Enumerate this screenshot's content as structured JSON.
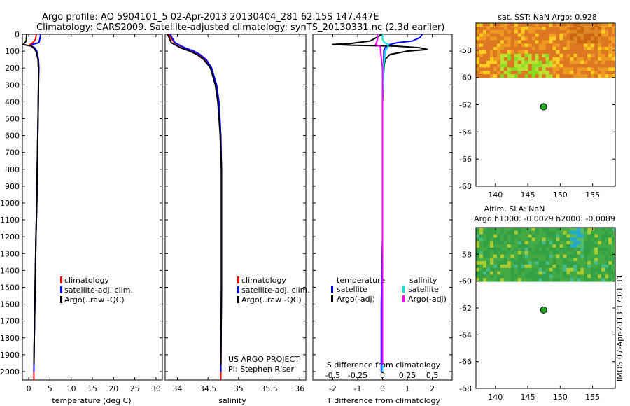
{
  "title": {
    "line1": "Argo profile: AO 5904101_5 02-Apr-2013 20130404_281 62.15S 147.447E",
    "line2": "Climatology: CARS2009. Satellite-adjusted climatology: synTS_20130331.nc (2.3d earlier)"
  },
  "colors": {
    "climatology": "#ff0000",
    "satellite": "#0000ff",
    "argo": "#000000",
    "sal_satellite": "#00e5e5",
    "sal_argo": "#ff00ff",
    "float_marker": "#22aa22"
  },
  "depth_ticks": [
    0,
    100,
    200,
    300,
    400,
    500,
    600,
    700,
    800,
    900,
    1000,
    1100,
    1200,
    1300,
    1400,
    1500,
    1600,
    1700,
    1800,
    1900,
    2000
  ],
  "footer": {
    "project": "US ARGO PROJECT",
    "pi": "PI: Stephen Riser",
    "timestamp": "IMOS 07-Apr-2013 17:01:31"
  },
  "chart_data": [
    {
      "type": "line",
      "title": "",
      "xlabel": "temperature (deg C)",
      "ylabel": "",
      "xlim": [
        -1.5,
        31.5
      ],
      "ylim": [
        2050,
        0
      ],
      "x_ticks": [
        0,
        5,
        10,
        15,
        20,
        25,
        30
      ],
      "x_tick_labels": [
        "0",
        "5",
        "10",
        "15",
        "20",
        "25",
        "30"
      ],
      "legend": {
        "position": "center-left",
        "entries": [
          "climatology",
          "satellite-adj. clim.",
          "Argo(..raw -QC)"
        ]
      },
      "series": [
        {
          "name": "climatology",
          "color": "#ff0000",
          "depth": [
            0,
            30,
            50,
            60,
            70,
            80,
            100,
            150,
            200,
            300,
            500,
            800,
            1000,
            1200,
            1500,
            1800,
            2000,
            2050
          ],
          "values": [
            1.8,
            1.6,
            1.0,
            0.3,
            0.5,
            1.2,
            1.8,
            2.2,
            2.3,
            2.3,
            2.2,
            2.0,
            1.9,
            1.7,
            1.5,
            1.3,
            1.2,
            1.2
          ]
        },
        {
          "name": "satellite-adj. clim.",
          "color": "#0000ff",
          "depth": [
            0,
            30,
            50,
            60,
            70,
            80,
            100,
            150,
            200,
            300,
            500,
            800,
            1000,
            1200,
            1500,
            1800,
            2000
          ],
          "values": [
            2.8,
            2.6,
            2.4,
            0.8,
            0.6,
            1.4,
            1.9,
            2.3,
            2.4,
            2.3,
            2.2,
            2.0,
            1.9,
            1.7,
            1.5,
            1.3,
            1.2
          ]
        },
        {
          "name": "Argo(..raw -QC)",
          "color": "#000000",
          "depth": [
            0,
            40,
            60,
            65,
            70,
            80,
            100,
            150,
            200,
            300,
            500,
            800,
            1000,
            1200,
            1500,
            1800,
            1960
          ],
          "values": [
            -0.5,
            -0.6,
            -1.3,
            -0.5,
            0.7,
            1.1,
            1.7,
            2.2,
            2.3,
            2.3,
            2.2,
            2.0,
            1.9,
            1.7,
            1.5,
            1.3,
            1.2
          ]
        }
      ]
    },
    {
      "type": "line",
      "title": "",
      "xlabel": "salinity",
      "ylabel": "",
      "xlim": [
        33.8,
        36.1
      ],
      "ylim": [
        2050,
        0
      ],
      "x_ticks": [
        34,
        34.5,
        35,
        35.5,
        36
      ],
      "x_tick_labels": [
        "34",
        "34.5",
        "35",
        "35.5",
        "36"
      ],
      "legend": {
        "position": "bottom-right",
        "entries": [
          "climatology",
          "satellite-adj. clim.",
          "Argo(..raw -QC)"
        ]
      },
      "series": [
        {
          "name": "climatology",
          "color": "#ff0000",
          "depth": [
            0,
            50,
            80,
            100,
            120,
            150,
            200,
            300,
            400,
            600,
            800,
            1000,
            1500,
            2050
          ],
          "values": [
            33.85,
            33.95,
            34.1,
            34.25,
            34.35,
            34.45,
            34.55,
            34.63,
            34.67,
            34.7,
            34.72,
            34.72,
            34.72,
            34.71
          ]
        },
        {
          "name": "satellite-adj. clim.",
          "color": "#0000ff",
          "depth": [
            0,
            50,
            80,
            100,
            120,
            150,
            200,
            300,
            400,
            600,
            800,
            1000,
            1500,
            2000
          ],
          "values": [
            33.88,
            33.96,
            34.12,
            34.27,
            34.37,
            34.47,
            34.56,
            34.64,
            34.68,
            34.71,
            34.72,
            34.72,
            34.72,
            34.71
          ]
        },
        {
          "name": "Argo(..raw -QC)",
          "color": "#000000",
          "depth": [
            0,
            50,
            80,
            100,
            120,
            150,
            200,
            300,
            400,
            600,
            800,
            1000,
            1500,
            1960
          ],
          "values": [
            33.84,
            33.9,
            34.05,
            34.2,
            34.32,
            34.43,
            34.54,
            34.62,
            34.66,
            34.7,
            34.72,
            34.72,
            34.72,
            34.71
          ]
        }
      ]
    },
    {
      "type": "line",
      "title": "",
      "xlabel": "T difference from climatology",
      "xlabel_top": "S difference from climatology",
      "ylabel": "",
      "xlim": [
        -2.8,
        2.8
      ],
      "ylim": [
        2050,
        0
      ],
      "x_ticks": [
        -2,
        -1,
        0,
        1,
        2
      ],
      "x_tick_labels": [
        "-2",
        "-1",
        "0",
        "1",
        "2"
      ],
      "x2_ticks": [
        -0.5,
        -0.25,
        0,
        0.25,
        0.5
      ],
      "x2_tick_labels": [
        "-0.5",
        "-0.25",
        "0",
        "0.25",
        "0.5"
      ],
      "legend": {
        "position": "center",
        "temperature_header": "temperature",
        "salinity_header": "salinity",
        "entries": [
          "satellite",
          "Argo(-adj)",
          "satellite",
          "Argo(-adj)"
        ]
      },
      "series": [
        {
          "name": "temperature satellite",
          "color": "#0000ff",
          "depth": [
            0,
            20,
            40,
            50,
            60,
            70,
            80,
            100,
            150,
            200,
            400,
            800,
            1200,
            1600,
            2000
          ],
          "values": [
            1.6,
            1.5,
            1.2,
            0.6,
            0.3,
            0.2,
            0.1,
            0.05,
            0.05,
            0.05,
            0.0,
            0.0,
            0.0,
            -0.05,
            -0.05
          ]
        },
        {
          "name": "temperature Argo(-adj)",
          "color": "#000000",
          "depth": [
            0,
            40,
            55,
            60,
            65,
            70,
            80,
            90,
            100,
            120,
            150,
            200,
            400,
            800,
            1200,
            1600,
            1960
          ],
          "values": [
            0.0,
            -0.5,
            -1.3,
            -2.0,
            -1.2,
            0.5,
            1.5,
            1.8,
            1.0,
            0.3,
            0.1,
            0.05,
            0.0,
            0.0,
            0.0,
            0.0,
            0.0
          ]
        },
        {
          "name": "salinity satellite",
          "color": "#00e5e5",
          "depth": [
            0,
            30,
            50,
            60,
            80,
            100,
            150,
            200,
            400,
            800,
            1200,
            1600,
            2000
          ],
          "values": [
            0.0,
            0.0,
            0.02,
            0.06,
            0.05,
            0.03,
            0.02,
            0.01,
            0.0,
            0.0,
            0.0,
            0.0,
            0.0
          ]
        },
        {
          "name": "salinity Argo(-adj)",
          "color": "#ff00ff",
          "depth": [
            0,
            30,
            50,
            60,
            70,
            80,
            100,
            150,
            200,
            400,
            800,
            1200,
            1600,
            1960
          ],
          "values": [
            -0.05,
            -0.05,
            -0.06,
            -0.07,
            -0.03,
            -0.02,
            -0.02,
            -0.01,
            0.0,
            0.0,
            0.0,
            0.0,
            0.0,
            0.0
          ]
        }
      ]
    },
    {
      "type": "heatmap",
      "title": "sat. SST: NaN Argo: 0.928",
      "xlim": [
        137,
        158.5
      ],
      "ylim": [
        -68,
        -56
      ],
      "x_ticks": [
        140,
        145,
        150,
        155
      ],
      "x_tick_labels": [
        "140",
        "145",
        "150",
        "155"
      ],
      "y_ticks": [
        -58,
        -60,
        -62,
        -64,
        -66,
        -68
      ],
      "y_tick_labels": [
        "-58",
        "-60",
        "-62",
        "-64",
        "-66",
        "-68"
      ],
      "data_lat_range": [
        -60,
        -56
      ],
      "marker": {
        "lon": 147.447,
        "lat": -62.15
      }
    },
    {
      "type": "heatmap",
      "title_line1": "Altim. SLA: NaN",
      "title_line2": "Argo h1000: -0.0029 h2000: -0.0089",
      "xlim": [
        137,
        158.5
      ],
      "ylim": [
        -68,
        -56
      ],
      "x_ticks": [
        140,
        145,
        150,
        155
      ],
      "x_tick_labels": [
        "140",
        "145",
        "150",
        "155"
      ],
      "y_ticks": [
        -58,
        -60,
        -62,
        -64,
        -66,
        -68
      ],
      "y_tick_labels": [
        "-58",
        "-60",
        "-62",
        "-64",
        "-66",
        "-68"
      ],
      "data_lat_range": [
        -60,
        -56
      ],
      "marker": {
        "lon": 147.447,
        "lat": -62.15
      }
    }
  ]
}
